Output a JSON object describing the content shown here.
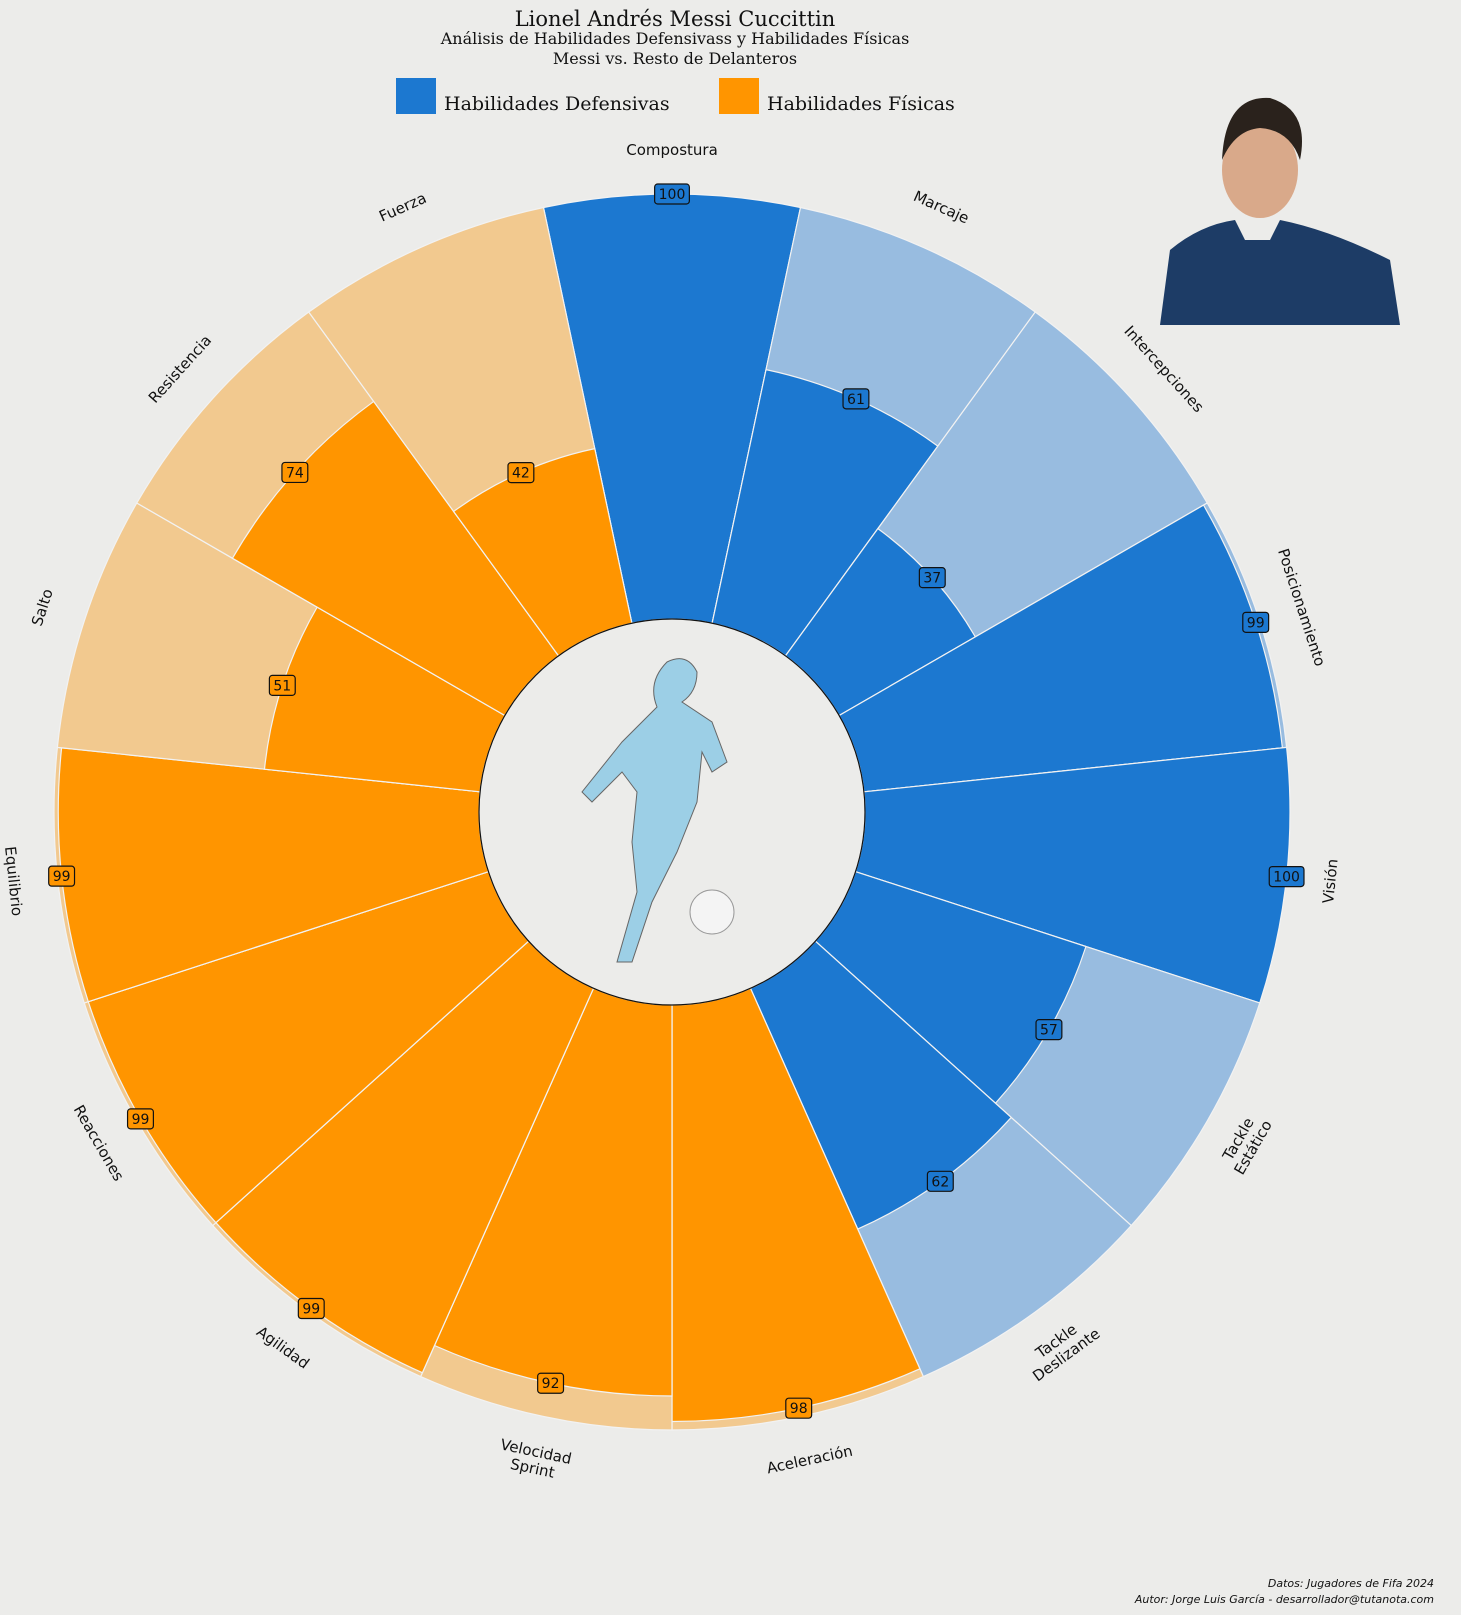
{
  "chart_data": {
    "type": "polar-bar",
    "title": "Lionel Andrés Messi Cuccittin",
    "subtitle": "Análisis de Habilidades Defensivass y Habilidades Físicas",
    "subtitle2": "Messi vs. Resto de Delanteros",
    "categories": [
      "Compostura",
      "Marcaje",
      "Intercepciones",
      "Posicionamiento",
      "Visión",
      "Tackle Estático",
      "Tackle Deslizante",
      "Aceleración",
      "Velocidad Sprint",
      "Agilidad",
      "Reacciones",
      "Equilibrio",
      "Salto",
      "Resistencia",
      "Fuerza"
    ],
    "series": [
      {
        "name": "Habilidades Defensivas",
        "color": "#1c78d0",
        "background_color": "#98bce0",
        "values": [
          100,
          61,
          37,
          99,
          100,
          57,
          62,
          null,
          null,
          null,
          null,
          null,
          null,
          null,
          null
        ]
      },
      {
        "name": "Habilidades Físicas",
        "color": "#ff9500",
        "background_color": "#f2c98f",
        "values": [
          null,
          null,
          null,
          null,
          null,
          null,
          null,
          98,
          92,
          99,
          99,
          99,
          51,
          74,
          42
        ]
      }
    ],
    "rlim": [
      0,
      100
    ],
    "legend": "top",
    "footer": [
      "Datos: Jugadores de Fifa 2024",
      "Autor: Jorge Luis García - desarrollador@tutanota.com"
    ]
  }
}
